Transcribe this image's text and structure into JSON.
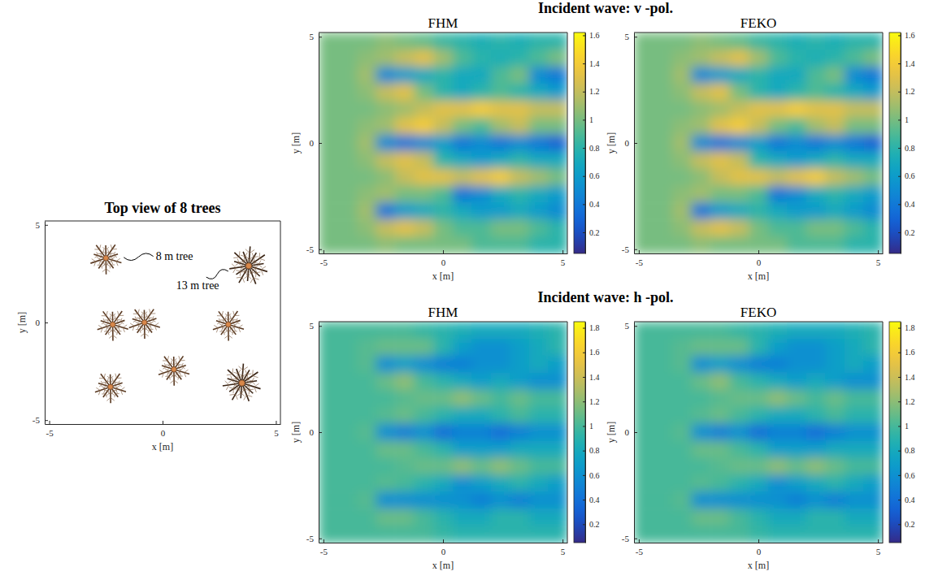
{
  "chart_data": [
    {
      "type": "scatter",
      "title": "Top view of 8 trees",
      "xlabel": "x [m]",
      "ylabel": "y [m]",
      "xlim": [
        -5.2,
        5.2
      ],
      "ylim": [
        -5.2,
        5.2
      ],
      "xticks": [
        -5,
        0,
        5
      ],
      "yticks": [
        -5,
        0,
        5
      ],
      "marker": "tree",
      "series": [
        {
          "x": [
            -2.5,
            -2.2,
            -0.8,
            2.9,
            -2.3,
            0.5
          ],
          "y": [
            3.3,
            -0.1,
            0.0,
            -0.1,
            -3.3,
            -2.4
          ],
          "annotation": {
            "text": "8 m tree",
            "x": -0.3,
            "y": 3.2
          }
        },
        {
          "x": [
            3.8,
            3.5
          ],
          "y": [
            2.9,
            -3.1
          ],
          "annotation": {
            "text": "13 m tree",
            "x": 0.6,
            "y": 1.7
          }
        }
      ]
    },
    {
      "type": "heatmap",
      "suptitle": "Incident wave: v -pol.",
      "title": "FHM",
      "xlabel": "x [m]",
      "ylabel": "y [m]",
      "xlim": [
        -5.2,
        5.2
      ],
      "ylim": [
        -5.2,
        5.2
      ],
      "xticks": [
        -5,
        0,
        5
      ],
      "yticks": [
        -5,
        0,
        5
      ],
      "x": [
        -4.8,
        -4.0,
        -3.2,
        -2.4,
        -1.6,
        -0.8,
        0,
        0.8,
        1.6,
        2.4,
        3.2,
        4.0,
        4.8
      ],
      "y": [
        4.8,
        4.0,
        3.2,
        2.4,
        1.6,
        0.8,
        0,
        -0.8,
        -1.6,
        -2.4,
        -3.2,
        -4.0,
        -4.8
      ],
      "values": [
        [
          1.0,
          1.0,
          1.0,
          1.05,
          1.0,
          0.95,
          0.85,
          0.8,
          0.75,
          0.8,
          0.75,
          0.8,
          0.8
        ],
        [
          1.0,
          1.0,
          1.05,
          1.1,
          1.2,
          1.3,
          1.1,
          0.9,
          0.8,
          0.75,
          0.8,
          0.9,
          1.0
        ],
        [
          1.0,
          1.0,
          1.1,
          0.5,
          0.6,
          0.7,
          0.8,
          0.7,
          0.7,
          0.9,
          1.0,
          0.5,
          0.4
        ],
        [
          1.0,
          1.0,
          1.05,
          1.2,
          1.3,
          1.0,
          0.8,
          0.7,
          0.8,
          0.9,
          0.8,
          0.7,
          0.6
        ],
        [
          1.0,
          1.0,
          1.0,
          1.05,
          1.1,
          1.2,
          1.3,
          1.3,
          1.4,
          1.3,
          1.3,
          1.2,
          1.2
        ],
        [
          1.0,
          1.0,
          1.05,
          1.1,
          1.3,
          1.4,
          1.2,
          1.0,
          0.9,
          1.1,
          1.2,
          1.0,
          1.0
        ],
        [
          1.0,
          1.0,
          1.1,
          0.5,
          0.4,
          0.5,
          0.6,
          0.4,
          0.5,
          0.4,
          0.5,
          0.4,
          0.3
        ],
        [
          1.0,
          1.0,
          1.05,
          1.2,
          1.3,
          1.2,
          0.8,
          0.7,
          0.6,
          0.7,
          0.8,
          0.7,
          0.7
        ],
        [
          1.0,
          1.0,
          1.0,
          1.05,
          1.2,
          1.3,
          1.3,
          1.2,
          1.3,
          1.4,
          1.2,
          1.1,
          1.0
        ],
        [
          1.0,
          1.0,
          1.05,
          1.1,
          1.0,
          1.0,
          0.9,
          0.4,
          0.5,
          0.7,
          0.8,
          0.7,
          0.6
        ],
        [
          1.0,
          1.0,
          1.1,
          0.4,
          0.6,
          0.7,
          0.8,
          0.7,
          0.6,
          0.6,
          0.7,
          0.6,
          0.5
        ],
        [
          1.0,
          1.0,
          1.05,
          1.2,
          1.3,
          1.2,
          1.0,
          0.9,
          0.9,
          1.0,
          1.0,
          0.9,
          0.8
        ],
        [
          1.0,
          1.0,
          1.0,
          1.05,
          1.0,
          1.0,
          1.0,
          1.0,
          0.9,
          0.9,
          0.9,
          0.8,
          0.8
        ]
      ],
      "colorbar": {
        "range": [
          0.05,
          1.62
        ],
        "ticks": [
          0.2,
          0.4,
          0.6,
          0.8,
          1,
          1.2,
          1.4,
          1.6
        ]
      }
    },
    {
      "type": "heatmap",
      "title": "FEKO",
      "xlabel": "x [m]",
      "ylabel": "y [m]",
      "xlim": [
        -5.2,
        5.2
      ],
      "ylim": [
        -5.2,
        5.2
      ],
      "xticks": [
        -5,
        0,
        5
      ],
      "yticks": [
        -5,
        0,
        5
      ],
      "x": [
        -4.8,
        -4.0,
        -3.2,
        -2.4,
        -1.6,
        -0.8,
        0,
        0.8,
        1.6,
        2.4,
        3.2,
        4.0,
        4.8
      ],
      "y": [
        4.8,
        4.0,
        3.2,
        2.4,
        1.6,
        0.8,
        0,
        -0.8,
        -1.6,
        -2.4,
        -3.2,
        -4.0,
        -4.8
      ],
      "values": [
        [
          1.0,
          1.0,
          1.0,
          1.05,
          1.0,
          0.95,
          0.85,
          0.8,
          0.75,
          0.8,
          0.75,
          0.8,
          0.8
        ],
        [
          1.0,
          1.0,
          1.05,
          1.1,
          1.2,
          1.3,
          1.1,
          0.9,
          0.8,
          0.75,
          0.8,
          0.9,
          1.0
        ],
        [
          1.0,
          1.0,
          1.1,
          0.5,
          0.6,
          0.7,
          0.8,
          0.7,
          0.7,
          0.9,
          1.0,
          0.5,
          0.4
        ],
        [
          1.0,
          1.0,
          1.05,
          1.2,
          1.3,
          1.0,
          0.8,
          0.7,
          0.8,
          0.9,
          0.8,
          0.7,
          0.6
        ],
        [
          1.0,
          1.0,
          1.0,
          1.05,
          1.1,
          1.2,
          1.3,
          1.3,
          1.4,
          1.3,
          1.3,
          1.2,
          1.2
        ],
        [
          1.0,
          1.0,
          1.05,
          1.1,
          1.3,
          1.4,
          1.2,
          1.0,
          0.9,
          1.1,
          1.2,
          1.0,
          1.0
        ],
        [
          1.0,
          1.0,
          1.1,
          0.5,
          0.4,
          0.5,
          0.6,
          0.4,
          0.5,
          0.4,
          0.5,
          0.4,
          0.3
        ],
        [
          1.0,
          1.0,
          1.05,
          1.2,
          1.3,
          1.2,
          0.8,
          0.7,
          0.6,
          0.7,
          0.8,
          0.7,
          0.7
        ],
        [
          1.0,
          1.0,
          1.0,
          1.05,
          1.2,
          1.3,
          1.3,
          1.2,
          1.3,
          1.4,
          1.2,
          1.1,
          1.0
        ],
        [
          1.0,
          1.0,
          1.05,
          1.1,
          1.0,
          1.0,
          0.9,
          0.4,
          0.5,
          0.7,
          0.8,
          0.7,
          0.6
        ],
        [
          1.0,
          1.0,
          1.1,
          0.4,
          0.6,
          0.7,
          0.8,
          0.7,
          0.6,
          0.6,
          0.7,
          0.6,
          0.5
        ],
        [
          1.0,
          1.0,
          1.05,
          1.2,
          1.3,
          1.2,
          1.0,
          0.9,
          0.9,
          1.0,
          1.0,
          0.9,
          0.8
        ],
        [
          1.0,
          1.0,
          1.0,
          1.05,
          1.0,
          1.0,
          1.0,
          1.0,
          0.9,
          0.9,
          0.9,
          0.8,
          0.8
        ]
      ],
      "colorbar": {
        "range": [
          0.05,
          1.62
        ],
        "ticks": [
          0.2,
          0.4,
          0.6,
          0.8,
          1,
          1.2,
          1.4,
          1.6
        ]
      }
    },
    {
      "type": "heatmap",
      "suptitle": "Incident wave: h -pol.",
      "title": "FHM",
      "xlabel": "x [m]",
      "ylabel": "y [m]",
      "xlim": [
        -5.2,
        5.2
      ],
      "ylim": [
        -5.2,
        5.2
      ],
      "xticks": [
        -5,
        0,
        5
      ],
      "yticks": [
        -5,
        0,
        5
      ],
      "x": [
        -4.8,
        -4.0,
        -3.2,
        -2.4,
        -1.6,
        -0.8,
        0,
        0.8,
        1.6,
        2.4,
        3.2,
        4.0,
        4.8
      ],
      "y": [
        4.8,
        4.0,
        3.2,
        2.4,
        1.6,
        0.8,
        0,
        -0.8,
        -1.6,
        -2.4,
        -3.2,
        -4.0,
        -4.8
      ],
      "values": [
        [
          1.0,
          1.0,
          1.0,
          1.0,
          1.0,
          0.95,
          0.9,
          0.85,
          0.8,
          0.8,
          0.8,
          0.85,
          0.9
        ],
        [
          1.0,
          1.0,
          1.05,
          1.1,
          1.1,
          1.1,
          0.9,
          0.7,
          0.6,
          0.6,
          0.7,
          0.8,
          0.9
        ],
        [
          1.0,
          1.0,
          1.05,
          0.6,
          0.7,
          0.6,
          0.5,
          0.5,
          0.6,
          0.6,
          0.7,
          0.8,
          0.7
        ],
        [
          1.0,
          1.0,
          1.0,
          1.1,
          1.2,
          1.0,
          0.9,
          0.8,
          0.7,
          0.8,
          0.7,
          0.6,
          0.6
        ],
        [
          1.0,
          1.0,
          1.0,
          1.0,
          1.05,
          1.1,
          1.1,
          1.2,
          1.1,
          1.0,
          1.1,
          1.0,
          1.0
        ],
        [
          1.0,
          1.0,
          1.0,
          1.05,
          1.1,
          1.0,
          0.9,
          0.8,
          0.8,
          0.9,
          1.0,
          0.9,
          0.9
        ],
        [
          1.0,
          1.0,
          1.05,
          0.6,
          0.5,
          0.6,
          0.4,
          0.5,
          0.5,
          0.4,
          0.5,
          0.6,
          0.6
        ],
        [
          1.0,
          1.0,
          1.0,
          1.1,
          1.1,
          1.0,
          0.9,
          0.7,
          0.7,
          0.7,
          0.8,
          0.8,
          0.8
        ],
        [
          1.0,
          1.0,
          1.0,
          1.0,
          1.05,
          1.1,
          1.1,
          1.2,
          1.1,
          1.2,
          1.1,
          1.0,
          1.0
        ],
        [
          1.0,
          1.0,
          1.0,
          1.05,
          1.0,
          0.9,
          0.8,
          0.6,
          0.7,
          0.8,
          0.9,
          0.8,
          0.7
        ],
        [
          1.0,
          1.0,
          1.05,
          0.6,
          0.6,
          0.6,
          0.6,
          0.6,
          0.5,
          0.6,
          0.5,
          0.6,
          0.6
        ],
        [
          1.0,
          1.0,
          1.0,
          1.1,
          1.1,
          1.0,
          0.9,
          0.8,
          0.8,
          0.9,
          0.9,
          0.8,
          0.8
        ],
        [
          1.0,
          1.0,
          1.0,
          1.0,
          1.0,
          1.0,
          0.95,
          0.9,
          0.9,
          0.9,
          0.9,
          0.9,
          0.9
        ]
      ],
      "colorbar": {
        "range": [
          0.05,
          1.85
        ],
        "ticks": [
          0.2,
          0.4,
          0.6,
          0.8,
          1,
          1.2,
          1.4,
          1.6,
          1.8
        ]
      }
    },
    {
      "type": "heatmap",
      "title": "FEKO",
      "xlabel": "x [m]",
      "ylabel": "y [m]",
      "xlim": [
        -5.2,
        5.2
      ],
      "ylim": [
        -5.2,
        5.2
      ],
      "xticks": [
        -5,
        0,
        5
      ],
      "yticks": [
        -5,
        0,
        5
      ],
      "x": [
        -4.8,
        -4.0,
        -3.2,
        -2.4,
        -1.6,
        -0.8,
        0,
        0.8,
        1.6,
        2.4,
        3.2,
        4.0,
        4.8
      ],
      "y": [
        4.8,
        4.0,
        3.2,
        2.4,
        1.6,
        0.8,
        0,
        -0.8,
        -1.6,
        -2.4,
        -3.2,
        -4.0,
        -4.8
      ],
      "values": [
        [
          1.0,
          1.0,
          1.0,
          1.0,
          1.0,
          0.95,
          0.9,
          0.85,
          0.8,
          0.8,
          0.8,
          0.85,
          0.9
        ],
        [
          1.0,
          1.0,
          1.05,
          1.1,
          1.1,
          1.1,
          0.9,
          0.7,
          0.6,
          0.6,
          0.7,
          0.8,
          0.9
        ],
        [
          1.0,
          1.0,
          1.05,
          0.6,
          0.7,
          0.6,
          0.5,
          0.5,
          0.6,
          0.6,
          0.7,
          0.8,
          0.7
        ],
        [
          1.0,
          1.0,
          1.0,
          1.1,
          1.2,
          1.0,
          0.9,
          0.8,
          0.7,
          0.8,
          0.7,
          0.6,
          0.6
        ],
        [
          1.0,
          1.0,
          1.0,
          1.0,
          1.05,
          1.1,
          1.1,
          1.2,
          1.1,
          1.0,
          1.1,
          1.0,
          1.0
        ],
        [
          1.0,
          1.0,
          1.0,
          1.05,
          1.1,
          1.0,
          0.9,
          0.8,
          0.8,
          0.9,
          1.0,
          0.9,
          0.9
        ],
        [
          1.0,
          1.0,
          1.05,
          0.6,
          0.5,
          0.6,
          0.4,
          0.5,
          0.5,
          0.4,
          0.5,
          0.6,
          0.6
        ],
        [
          1.0,
          1.0,
          1.0,
          1.1,
          1.1,
          1.0,
          0.9,
          0.7,
          0.7,
          0.7,
          0.8,
          0.8,
          0.8
        ],
        [
          1.0,
          1.0,
          1.0,
          1.0,
          1.05,
          1.1,
          1.1,
          1.2,
          1.1,
          1.2,
          1.1,
          1.0,
          1.0
        ],
        [
          1.0,
          1.0,
          1.0,
          1.05,
          1.0,
          0.9,
          0.8,
          0.6,
          0.7,
          0.8,
          0.9,
          0.8,
          0.7
        ],
        [
          1.0,
          1.0,
          1.05,
          0.6,
          0.6,
          0.6,
          0.6,
          0.6,
          0.5,
          0.6,
          0.5,
          0.6,
          0.6
        ],
        [
          1.0,
          1.0,
          1.0,
          1.1,
          1.1,
          1.0,
          0.9,
          0.8,
          0.8,
          0.9,
          0.9,
          0.8,
          0.8
        ],
        [
          1.0,
          1.0,
          1.0,
          1.0,
          1.0,
          1.0,
          0.95,
          0.9,
          0.9,
          0.9,
          0.9,
          0.9,
          0.9
        ]
      ],
      "colorbar": {
        "range": [
          0.05,
          1.85
        ],
        "ticks": [
          0.2,
          0.4,
          0.6,
          0.8,
          1,
          1.2,
          1.4,
          1.6,
          1.8
        ]
      }
    }
  ]
}
